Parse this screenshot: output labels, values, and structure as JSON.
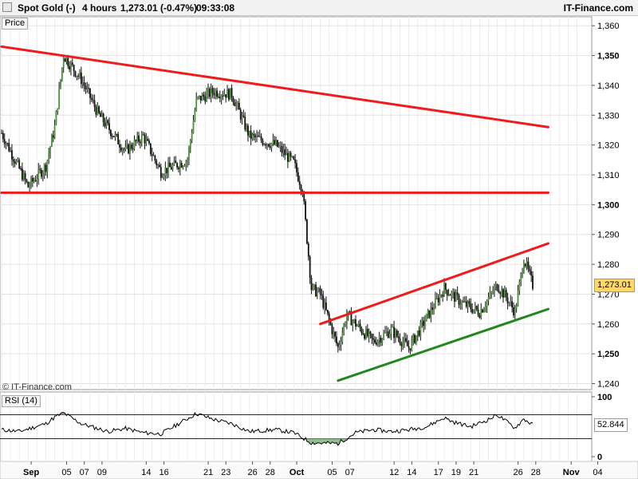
{
  "header": {
    "symbol": "Spot Gold (-)",
    "timeframe": "4 hours",
    "quote": "1,273.01 (-0.47%)",
    "time": "09:33:08",
    "brand": "IT-Finance.com"
  },
  "watermark": "© IT-Finance.com",
  "colors": {
    "up_body": "#4e8e3a",
    "down_body": "#111111",
    "resistance": "#ee1c1c",
    "support": "#22871f",
    "rsi_line": "#000000",
    "rsi_bands": "#1a1a99",
    "overbought_fill": "#c08a8a",
    "oversold_fill": "#8fbf8f",
    "last_price_flag": "#ffd76a",
    "rsi_flag": "#ffffff"
  },
  "chart_data": [
    {
      "type": "candlestick",
      "pane_label": "Price",
      "x_tick_labels": [
        "Sep",
        "05",
        "07",
        "09",
        "14",
        "16",
        "21",
        "23",
        "26",
        "28",
        "Oct",
        "05",
        "07",
        "12",
        "14",
        "17",
        "19",
        "21",
        "26",
        "28",
        "Nov",
        "04"
      ],
      "y_tick_labels": [
        "1,360",
        "1,350",
        "1,340",
        "1,330",
        "1,320",
        "1,310",
        "1,300",
        "1,290",
        "1,280",
        "1,270",
        "1,260",
        "1,250",
        "1,240"
      ],
      "y_range": [
        1238,
        1363
      ],
      "last_value": 1273.01,
      "last_value_label": "1,273.01",
      "anchors": [
        [
          "2018-08-31",
          1324
        ],
        [
          "2018-09-03",
          1306
        ],
        [
          "2018-09-05",
          1313
        ],
        [
          "2018-09-06",
          1326
        ],
        [
          "2018-09-07",
          1350
        ],
        [
          "2018-09-09",
          1342
        ],
        [
          "2018-09-11",
          1330
        ],
        [
          "2018-09-14",
          1318
        ],
        [
          "2018-09-16",
          1323
        ],
        [
          "2018-09-18",
          1311
        ],
        [
          "2018-09-21",
          1315
        ],
        [
          "2018-09-22",
          1335
        ],
        [
          "2018-09-24",
          1338
        ],
        [
          "2018-09-26",
          1337
        ],
        [
          "2018-09-28",
          1323
        ],
        [
          "2018-10-01",
          1320
        ],
        [
          "2018-10-03",
          1314
        ],
        [
          "2018-10-04",
          1305
        ],
        [
          "2018-10-05",
          1272
        ],
        [
          "2018-10-06",
          1270
        ],
        [
          "2018-10-08",
          1252
        ],
        [
          "2018-10-09",
          1263
        ],
        [
          "2018-10-12",
          1254
        ],
        [
          "2018-10-14",
          1258
        ],
        [
          "2018-10-16",
          1252
        ],
        [
          "2018-10-18",
          1262
        ],
        [
          "2018-10-20",
          1272
        ],
        [
          "2018-10-22",
          1267
        ],
        [
          "2018-10-24",
          1264
        ],
        [
          "2018-10-26",
          1273
        ],
        [
          "2018-10-27",
          1269
        ],
        [
          "2018-10-28",
          1264
        ],
        [
          "2018-10-29",
          1282
        ],
        [
          "2018-10-30",
          1273
        ]
      ],
      "trendlines": [
        {
          "role": "resistance",
          "from": [
            "2018-08-31",
            1353
          ],
          "to": [
            "2018-11-04",
            1326
          ]
        },
        {
          "role": "resistance",
          "from": [
            "2018-08-31",
            1304
          ],
          "to": [
            "2018-11-04",
            1304
          ]
        },
        {
          "role": "resistance",
          "from": [
            "2018-10-06",
            1260
          ],
          "to": [
            "2018-11-04",
            1287
          ]
        },
        {
          "role": "support",
          "from": [
            "2018-10-08",
            1241
          ],
          "to": [
            "2018-11-04",
            1265
          ]
        }
      ]
    },
    {
      "type": "line",
      "pane_label": "RSI (14)",
      "y_tick_labels": [
        "100",
        "0"
      ],
      "y_range": [
        0,
        100
      ],
      "overbought": 70,
      "oversold": 30,
      "last_value": 52.844,
      "last_value_label": "52.844",
      "anchors": [
        [
          "2018-08-31",
          45
        ],
        [
          "2018-09-02",
          42
        ],
        [
          "2018-09-05",
          55
        ],
        [
          "2018-09-06",
          66
        ],
        [
          "2018-09-07",
          73
        ],
        [
          "2018-09-09",
          55
        ],
        [
          "2018-09-12",
          42
        ],
        [
          "2018-09-14",
          47
        ],
        [
          "2018-09-16",
          40
        ],
        [
          "2018-09-18",
          38
        ],
        [
          "2018-09-20",
          55
        ],
        [
          "2018-09-22",
          72
        ],
        [
          "2018-09-24",
          62
        ],
        [
          "2018-09-26",
          55
        ],
        [
          "2018-09-28",
          42
        ],
        [
          "2018-10-01",
          45
        ],
        [
          "2018-10-03",
          40
        ],
        [
          "2018-10-05",
          23
        ],
        [
          "2018-10-08",
          22
        ],
        [
          "2018-10-10",
          40
        ],
        [
          "2018-10-12",
          45
        ],
        [
          "2018-10-14",
          42
        ],
        [
          "2018-10-16",
          45
        ],
        [
          "2018-10-18",
          50
        ],
        [
          "2018-10-20",
          65
        ],
        [
          "2018-10-21",
          58
        ],
        [
          "2018-10-23",
          50
        ],
        [
          "2018-10-25",
          62
        ],
        [
          "2018-10-26",
          70
        ],
        [
          "2018-10-28",
          48
        ],
        [
          "2018-10-29",
          63
        ],
        [
          "2018-10-30",
          53
        ]
      ]
    }
  ]
}
